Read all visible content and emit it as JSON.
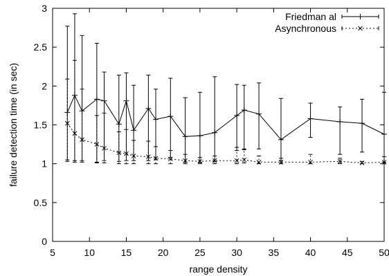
{
  "chart_data": {
    "type": "line",
    "xlabel": "range density",
    "ylabel": "failure detection time (in sec)",
    "xlim": [
      5,
      50
    ],
    "ylim": [
      0,
      3
    ],
    "xticks": [
      "5",
      "10",
      "15",
      "20",
      "25",
      "30",
      "35",
      "40",
      "45",
      "50"
    ],
    "yticks": [
      "0",
      "0.5",
      "1",
      "1.5",
      "2",
      "2.5",
      "3"
    ],
    "grid": false,
    "legend_position": "top-right",
    "series": [
      {
        "name": "Friedman  al",
        "style": "solid",
        "marker": "plus",
        "color": "#000000",
        "points": [
          {
            "x": 7,
            "y": 1.66,
            "lo": 1.05,
            "hi": 2.77
          },
          {
            "x": 8,
            "y": 1.88,
            "lo": 1.04,
            "hi": 2.93
          },
          {
            "x": 9,
            "y": 1.68,
            "lo": 1.04,
            "hi": 2.65
          },
          {
            "x": 11,
            "y": 1.83,
            "lo": 1.02,
            "hi": 2.55
          },
          {
            "x": 12,
            "y": 1.81,
            "lo": 1.04,
            "hi": 2.18
          },
          {
            "x": 14,
            "y": 1.51,
            "lo": 1.03,
            "hi": 2.14
          },
          {
            "x": 15,
            "y": 1.81,
            "lo": 1.04,
            "hi": 2.17
          },
          {
            "x": 16,
            "y": 1.43,
            "lo": 1.04,
            "hi": 2.01
          },
          {
            "x": 18,
            "y": 1.71,
            "lo": 1.04,
            "hi": 2.14
          },
          {
            "x": 19,
            "y": 1.57,
            "lo": 1.05,
            "hi": 1.96
          },
          {
            "x": 21,
            "y": 1.61,
            "lo": 1.08,
            "hi": 2.1
          },
          {
            "x": 23,
            "y": 1.35,
            "lo": 1.02,
            "hi": 1.85
          },
          {
            "x": 25,
            "y": 1.36,
            "lo": 1.02,
            "hi": 1.92
          },
          {
            "x": 27,
            "y": 1.4,
            "lo": 1.03,
            "hi": 2.12
          },
          {
            "x": 30,
            "y": 1.62,
            "lo": 1.17,
            "hi": 2.02
          },
          {
            "x": 31,
            "y": 1.69,
            "lo": 1.18,
            "hi": 2.01
          },
          {
            "x": 33,
            "y": 1.64,
            "lo": 1.19,
            "hi": 2.04
          },
          {
            "x": 36,
            "y": 1.31,
            "lo": 1.04,
            "hi": 1.84
          },
          {
            "x": 40,
            "y": 1.58,
            "lo": 1.34,
            "hi": 1.78
          },
          {
            "x": 44,
            "y": 1.54,
            "lo": 1.12,
            "hi": 1.73
          },
          {
            "x": 47,
            "y": 1.52,
            "lo": 1.15,
            "hi": 1.83
          },
          {
            "x": 50,
            "y": 1.38,
            "lo": 1.02,
            "hi": 1.92
          }
        ]
      },
      {
        "name": "Asynchronous",
        "style": "dotted",
        "marker": "cross",
        "color": "#000000",
        "points": [
          {
            "x": 7,
            "y": 1.52,
            "lo": 1.03,
            "hi": 2.09
          },
          {
            "x": 8,
            "y": 1.39,
            "lo": 1.02,
            "hi": 2.33
          },
          {
            "x": 9,
            "y": 1.31,
            "lo": 1.02,
            "hi": 1.96
          },
          {
            "x": 11,
            "y": 1.25,
            "lo": 1.01,
            "hi": 1.62
          },
          {
            "x": 12,
            "y": 1.2,
            "lo": 1.01,
            "hi": 1.65
          },
          {
            "x": 14,
            "y": 1.14,
            "lo": 1.0,
            "hi": 1.41
          },
          {
            "x": 15,
            "y": 1.13,
            "lo": 1.0,
            "hi": 1.44
          },
          {
            "x": 16,
            "y": 1.1,
            "lo": 1.0,
            "hi": 1.3
          },
          {
            "x": 18,
            "y": 1.09,
            "lo": 1.0,
            "hi": 1.29
          },
          {
            "x": 19,
            "y": 1.07,
            "lo": 1.0,
            "hi": 1.22
          },
          {
            "x": 21,
            "y": 1.06,
            "lo": 1.0,
            "hi": 1.17
          },
          {
            "x": 23,
            "y": 1.04,
            "lo": 1.0,
            "hi": 1.12
          },
          {
            "x": 25,
            "y": 1.03,
            "lo": 1.0,
            "hi": 1.08
          },
          {
            "x": 27,
            "y": 1.04,
            "lo": 1.0,
            "hi": 1.1
          },
          {
            "x": 30,
            "y": 1.04,
            "lo": 1.0,
            "hi": 1.21
          },
          {
            "x": 31,
            "y": 1.05,
            "lo": 1.01,
            "hi": 1.19
          },
          {
            "x": 33,
            "y": 1.02,
            "lo": 1.0,
            "hi": 1.1
          },
          {
            "x": 36,
            "y": 1.02,
            "lo": 1.0,
            "hi": 1.07
          },
          {
            "x": 40,
            "y": 1.02,
            "lo": 1.0,
            "hi": 1.12
          },
          {
            "x": 44,
            "y": 1.03,
            "lo": 1.0,
            "hi": 1.07
          },
          {
            "x": 47,
            "y": 1.01,
            "lo": 1.0,
            "hi": 1.03
          },
          {
            "x": 50,
            "y": 1.02,
            "lo": 1.0,
            "hi": 1.09
          }
        ]
      }
    ]
  }
}
